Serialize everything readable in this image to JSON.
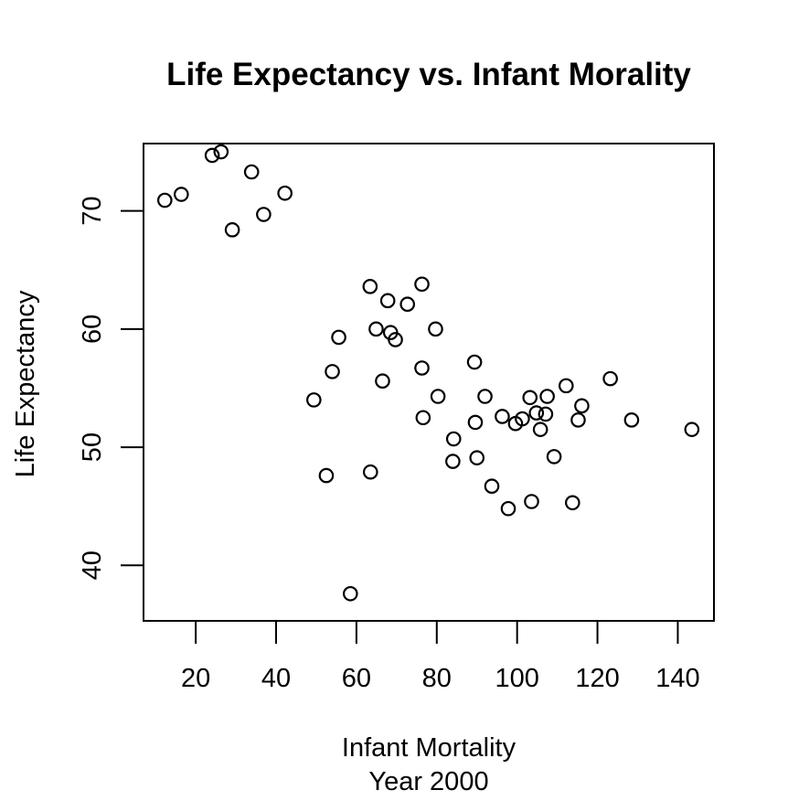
{
  "chart_data": {
    "type": "scatter",
    "title": "Life Expectancy vs. Infant Morality",
    "xlabel": "Infant Mortality",
    "xlabel_sub": "Year 2000",
    "ylabel": "Life Expectancy",
    "xlim": [
      7,
      149
    ],
    "ylim": [
      35.3,
      75.7
    ],
    "x_ticks": [
      20,
      40,
      60,
      80,
      100,
      120,
      140
    ],
    "y_ticks": [
      40,
      50,
      60,
      70
    ],
    "grid": false,
    "legend": "none",
    "marker": "open-circle",
    "points": [
      {
        "x": 12.3,
        "y": 70.9
      },
      {
        "x": 16.4,
        "y": 71.4
      },
      {
        "x": 24.1,
        "y": 74.7
      },
      {
        "x": 26.3,
        "y": 75.0
      },
      {
        "x": 33.9,
        "y": 73.3
      },
      {
        "x": 42.2,
        "y": 71.5
      },
      {
        "x": 36.9,
        "y": 69.7
      },
      {
        "x": 29.1,
        "y": 68.4
      },
      {
        "x": 63.4,
        "y": 63.6
      },
      {
        "x": 76.3,
        "y": 63.8
      },
      {
        "x": 67.8,
        "y": 62.4
      },
      {
        "x": 72.7,
        "y": 62.1
      },
      {
        "x": 55.6,
        "y": 59.3
      },
      {
        "x": 64.9,
        "y": 60.0
      },
      {
        "x": 68.5,
        "y": 59.7
      },
      {
        "x": 69.7,
        "y": 59.1
      },
      {
        "x": 79.7,
        "y": 60.0
      },
      {
        "x": 54.0,
        "y": 56.4
      },
      {
        "x": 76.3,
        "y": 56.7
      },
      {
        "x": 66.5,
        "y": 55.6
      },
      {
        "x": 49.4,
        "y": 54.0
      },
      {
        "x": 80.3,
        "y": 54.3
      },
      {
        "x": 76.6,
        "y": 52.5
      },
      {
        "x": 84.2,
        "y": 50.7
      },
      {
        "x": 84.0,
        "y": 48.8
      },
      {
        "x": 52.5,
        "y": 47.6
      },
      {
        "x": 63.5,
        "y": 47.9
      },
      {
        "x": 89.4,
        "y": 57.2
      },
      {
        "x": 92.0,
        "y": 54.3
      },
      {
        "x": 89.6,
        "y": 52.1
      },
      {
        "x": 90.0,
        "y": 49.1
      },
      {
        "x": 96.3,
        "y": 52.6
      },
      {
        "x": 99.6,
        "y": 52.0
      },
      {
        "x": 101.3,
        "y": 52.4
      },
      {
        "x": 103.2,
        "y": 54.2
      },
      {
        "x": 107.5,
        "y": 54.3
      },
      {
        "x": 104.8,
        "y": 52.9
      },
      {
        "x": 107.1,
        "y": 52.8
      },
      {
        "x": 105.8,
        "y": 51.5
      },
      {
        "x": 112.2,
        "y": 55.2
      },
      {
        "x": 116.1,
        "y": 53.5
      },
      {
        "x": 115.2,
        "y": 52.3
      },
      {
        "x": 109.2,
        "y": 49.2
      },
      {
        "x": 93.7,
        "y": 46.7
      },
      {
        "x": 97.8,
        "y": 44.8
      },
      {
        "x": 103.6,
        "y": 45.4
      },
      {
        "x": 113.8,
        "y": 45.3
      },
      {
        "x": 123.2,
        "y": 55.8
      },
      {
        "x": 128.5,
        "y": 52.3
      },
      {
        "x": 143.5,
        "y": 51.5
      },
      {
        "x": 58.5,
        "y": 37.6
      }
    ]
  }
}
